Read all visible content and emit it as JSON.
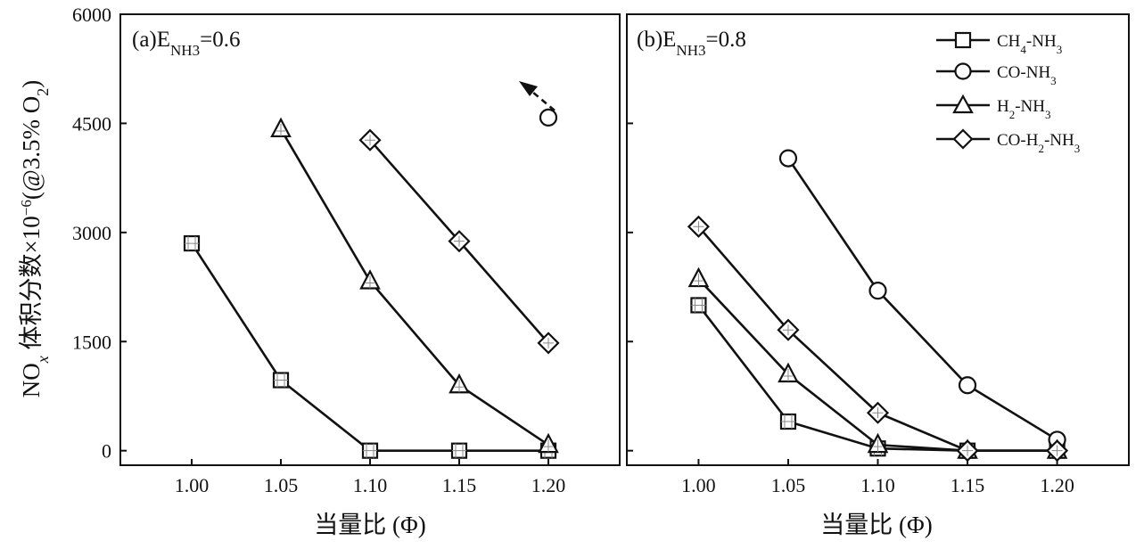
{
  "chart_data": [
    {
      "type": "line",
      "panel_label": {
        "prefix": "(a)E",
        "sub": "NH3",
        "suffix": "=0.6"
      },
      "xlabel": "当量比 (Φ)",
      "ylabel": {
        "main": "NO",
        "x": "x",
        "mid": " 体积分数×10",
        "exp": "−6",
        "tail": "(@3.5% O",
        "o2": "2",
        "end": ")"
      },
      "x_ticks": [
        "1.00",
        "1.05",
        "1.10",
        "1.15",
        "1.20"
      ],
      "y_ticks": [
        "0",
        "1500",
        "3000",
        "4500",
        "6000"
      ],
      "xlim": [
        0.96,
        1.24
      ],
      "ylim": [
        -200,
        6000
      ],
      "annotation": "dashed arrow pointing up-left from CO-NH3 point at 1.20",
      "series": [
        {
          "name": "CH4-NH3",
          "marker": "square",
          "x": [
            1.0,
            1.05,
            1.1,
            1.15,
            1.2
          ],
          "y": [
            2850,
            970,
            0,
            0,
            0
          ]
        },
        {
          "name": "CO-NH3",
          "marker": "circle",
          "x": [
            1.2
          ],
          "y": [
            4580
          ]
        },
        {
          "name": "H2-NH3",
          "marker": "triangle",
          "x": [
            1.05,
            1.1,
            1.15,
            1.2
          ],
          "y": [
            4420,
            2330,
            900,
            80
          ]
        },
        {
          "name": "CO-H2-NH3",
          "marker": "diamond",
          "x": [
            1.1,
            1.15,
            1.2
          ],
          "y": [
            4270,
            2880,
            1480
          ]
        }
      ]
    },
    {
      "type": "line",
      "panel_label": {
        "prefix": "(b)E",
        "sub": "NH3",
        "suffix": "=0.8"
      },
      "xlabel": "当量比 (Φ)",
      "x_ticks": [
        "1.00",
        "1.05",
        "1.10",
        "1.15",
        "1.20"
      ],
      "xlim": [
        0.96,
        1.24
      ],
      "ylim": [
        -200,
        6000
      ],
      "legend": {
        "placement": "top-right",
        "entries": [
          {
            "marker": "square",
            "parts": [
              "CH",
              "4",
              "-NH",
              "3"
            ]
          },
          {
            "marker": "circle",
            "parts": [
              "CO-NH",
              "3"
            ]
          },
          {
            "marker": "triangle",
            "parts": [
              "H",
              "2",
              "-NH",
              "3"
            ]
          },
          {
            "marker": "diamond",
            "parts": [
              "CO-H",
              "2",
              "-NH",
              "3"
            ]
          }
        ]
      },
      "series": [
        {
          "name": "CH4-NH3",
          "marker": "square",
          "x": [
            1.0,
            1.05,
            1.1,
            1.15,
            1.2
          ],
          "y": [
            2000,
            400,
            30,
            0,
            0
          ]
        },
        {
          "name": "CO-NH3",
          "marker": "circle",
          "x": [
            1.05,
            1.1,
            1.15,
            1.2
          ],
          "y": [
            4020,
            2200,
            900,
            150
          ]
        },
        {
          "name": "H2-NH3",
          "marker": "triangle",
          "x": [
            1.0,
            1.05,
            1.1,
            1.15,
            1.2
          ],
          "y": [
            2360,
            1050,
            80,
            0,
            0
          ]
        },
        {
          "name": "CO-H2-NH3",
          "marker": "diamond",
          "x": [
            1.0,
            1.05,
            1.1,
            1.15,
            1.2
          ],
          "y": [
            3080,
            1660,
            520,
            0,
            0
          ]
        }
      ]
    }
  ]
}
